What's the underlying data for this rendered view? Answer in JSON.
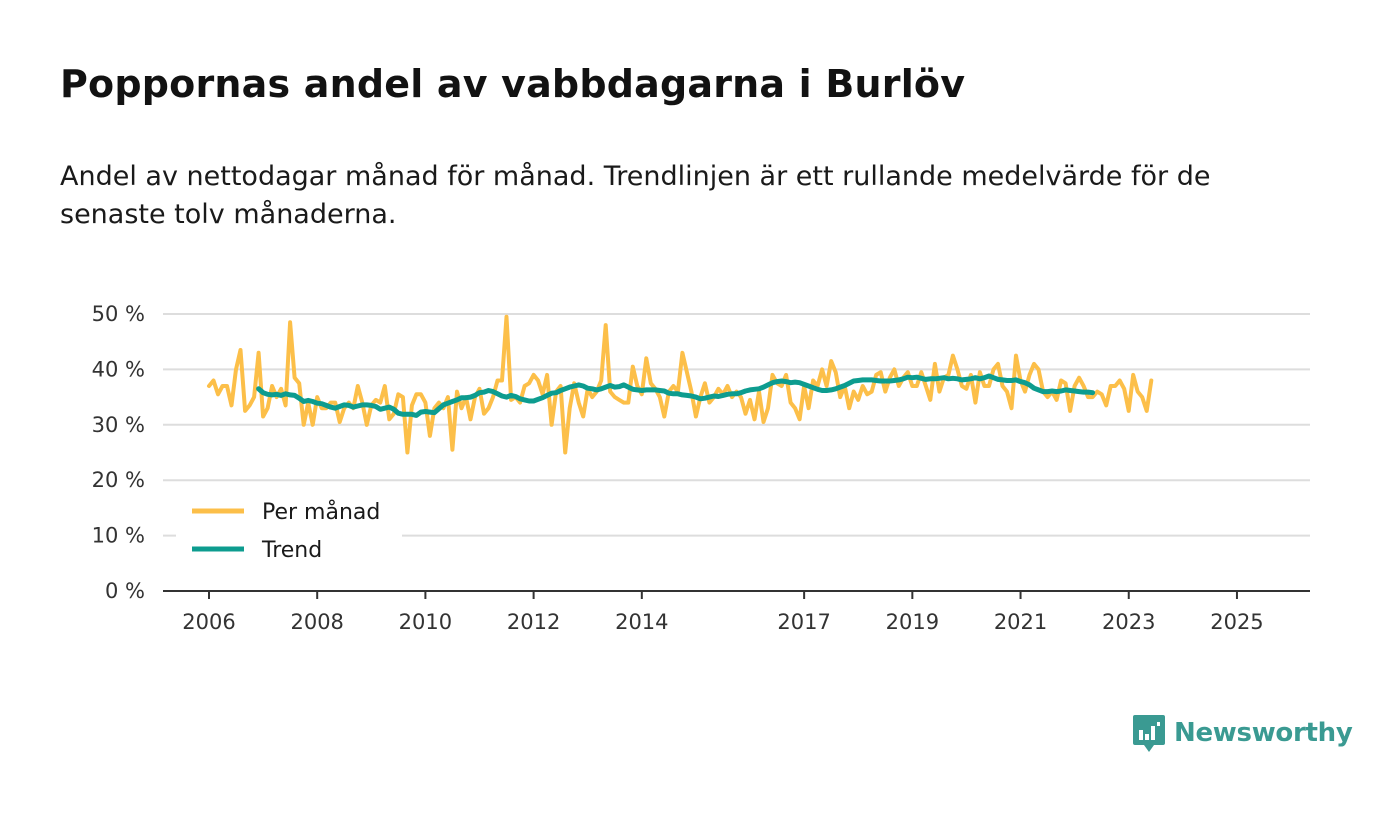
{
  "header": {
    "title": "Poppornas andel av vabbdagarna i Burlöv",
    "subtitle": "Andel av nettodagar månad för månad. Trendlinjen är ett rullande medelvärde för de senaste tolv månaderna."
  },
  "brand": {
    "name": "Newsworthy",
    "icon": "newsworthy-logo-icon"
  },
  "colors": {
    "monthly": "#fcbf49",
    "trend": "#0d9c8f",
    "grid": "#dddddd",
    "axis": "#333333",
    "brand": "#3a9a92"
  },
  "chart_data": {
    "type": "line",
    "title": "Poppornas andel av vabbdagarna i Burlöv",
    "xlabel": "",
    "ylabel": "",
    "x_start": 2006.0,
    "x_step": 0.08333,
    "xlim": [
      2005.15,
      2026.35
    ],
    "ylim": [
      0,
      50
    ],
    "yticks": [
      0,
      10,
      20,
      30,
      40,
      50
    ],
    "ytick_labels": [
      "0 %",
      "10 %",
      "20 %",
      "30 %",
      "40 %",
      "50 %"
    ],
    "xticks": [
      2006,
      2008,
      2010,
      2012,
      2014,
      2017,
      2019,
      2021,
      2023,
      2025
    ],
    "xtick_labels": [
      "2006",
      "2008",
      "2010",
      "2012",
      "2014",
      "2017",
      "2019",
      "2021",
      "2023",
      "2025"
    ],
    "legend_position": "bottom-left",
    "series": [
      {
        "name": "Per månad",
        "values": [
          37,
          38,
          35.5,
          37,
          37,
          33.5,
          40,
          43.5,
          32.5,
          33.5,
          35,
          43,
          31.5,
          33,
          37,
          35,
          36.5,
          33.5,
          48.5,
          38.5,
          37.5,
          30,
          34,
          30,
          35,
          33,
          33,
          34,
          34,
          30.5,
          33,
          34,
          33,
          37,
          34,
          30,
          33.5,
          34.5,
          34,
          37,
          31,
          32,
          35.5,
          35,
          25,
          33.5,
          35.5,
          35.5,
          34,
          28,
          33,
          34,
          33,
          35,
          25.5,
          36,
          33,
          35,
          31,
          35,
          36.5,
          32,
          33,
          35,
          38,
          38,
          49.5,
          34.5,
          35,
          34,
          37,
          37.5,
          39,
          38,
          35.5,
          39,
          30,
          36,
          37,
          25,
          33,
          37.5,
          34,
          31.5,
          36.5,
          35,
          36,
          38,
          48,
          36,
          35,
          34.5,
          34,
          34,
          40.5,
          37,
          35.5,
          42,
          37.5,
          36.5,
          35,
          31.5,
          36,
          37,
          36,
          43,
          39.5,
          36,
          31.5,
          35,
          37.5,
          34,
          35,
          36.5,
          35.5,
          37,
          35,
          36,
          35,
          32,
          34.5,
          31,
          36,
          30.5,
          33,
          39,
          37.5,
          37,
          39,
          34,
          33,
          31,
          37,
          33,
          38,
          37,
          40,
          37,
          41.5,
          39.5,
          35,
          37,
          33,
          36,
          34.5,
          37,
          35.5,
          36,
          39,
          39.5,
          36,
          38.5,
          40,
          37,
          38.5,
          39.5,
          37,
          37,
          39.5,
          37,
          34.5,
          41,
          36,
          38.5,
          39,
          42.5,
          40,
          37,
          36.5,
          39,
          34,
          39.5,
          37,
          37,
          40,
          41,
          37,
          36,
          33,
          42.5,
          38,
          36,
          39,
          41,
          40,
          36,
          35,
          36,
          34.5,
          38,
          37.5,
          32.5,
          37,
          38.5,
          37,
          35,
          35,
          36,
          35.5,
          33.5,
          37,
          37,
          38,
          36.5,
          32.5,
          39,
          36,
          35,
          32.5,
          38
        ]
      },
      {
        "name": "Trend",
        "start_index": 11,
        "values": [
          36.5,
          35.8,
          35.5,
          35.4,
          35.5,
          35.3,
          35.6,
          35.4,
          35.3,
          34.8,
          34.2,
          34.4,
          34.2,
          33.9,
          33.8,
          33.5,
          33.2,
          33,
          33.3,
          33.6,
          33.5,
          33.2,
          33.4,
          33.6,
          33.6,
          33.5,
          33.3,
          32.8,
          33,
          33.2,
          32.8,
          32.1,
          31.9,
          31.9,
          31.9,
          31.7,
          32.3,
          32.4,
          32.3,
          32.2,
          32.9,
          33.6,
          33.9,
          34.2,
          34.5,
          34.9,
          34.9,
          35,
          35.3,
          35.8,
          35.9,
          36.2,
          36,
          35.6,
          35.2,
          35,
          35.3,
          35.1,
          34.7,
          34.5,
          34.3,
          34.3,
          34.6,
          34.9,
          35.3,
          35.7,
          35.8,
          36.2,
          36.5,
          36.8,
          37,
          37.2,
          37,
          36.6,
          36.5,
          36.3,
          36.5,
          36.8,
          37.1,
          36.8,
          36.9,
          37.2,
          36.8,
          36.4,
          36.3,
          36.2,
          36.3,
          36.3,
          36.3,
          36.2,
          36.1,
          35.7,
          35.6,
          35.6,
          35.4,
          35.3,
          35.2,
          35,
          34.7,
          34.8,
          35,
          35.2,
          35.1,
          35.3,
          35.5,
          35.6,
          35.6,
          35.8,
          36.1,
          36.3,
          36.4,
          36.5,
          36.8,
          37.2,
          37.6,
          37.8,
          37.9,
          37.8,
          37.6,
          37.7,
          37.6,
          37.3,
          37,
          36.7,
          36.4,
          36.2,
          36.2,
          36.3,
          36.5,
          36.8,
          37.1,
          37.5,
          37.9,
          38,
          38.1,
          38.1,
          38.1,
          38,
          37.9,
          37.9,
          37.9,
          38,
          38.1,
          38.3,
          38.6,
          38.5,
          38.6,
          38.4,
          38.2,
          38.3,
          38.3,
          38.4,
          38.5,
          38.3,
          38.4,
          38.3,
          38.1,
          38.2,
          38.3,
          38.5,
          38.3,
          38.5,
          38.8,
          38.5,
          38.2,
          38.1,
          38,
          38,
          38.1,
          37.8,
          37.6,
          37.2,
          36.6,
          36.3,
          36,
          36,
          36.1,
          36,
          36.1,
          36.3,
          36.2,
          36.1,
          36,
          35.9,
          35.9,
          35.8
        ]
      }
    ]
  }
}
